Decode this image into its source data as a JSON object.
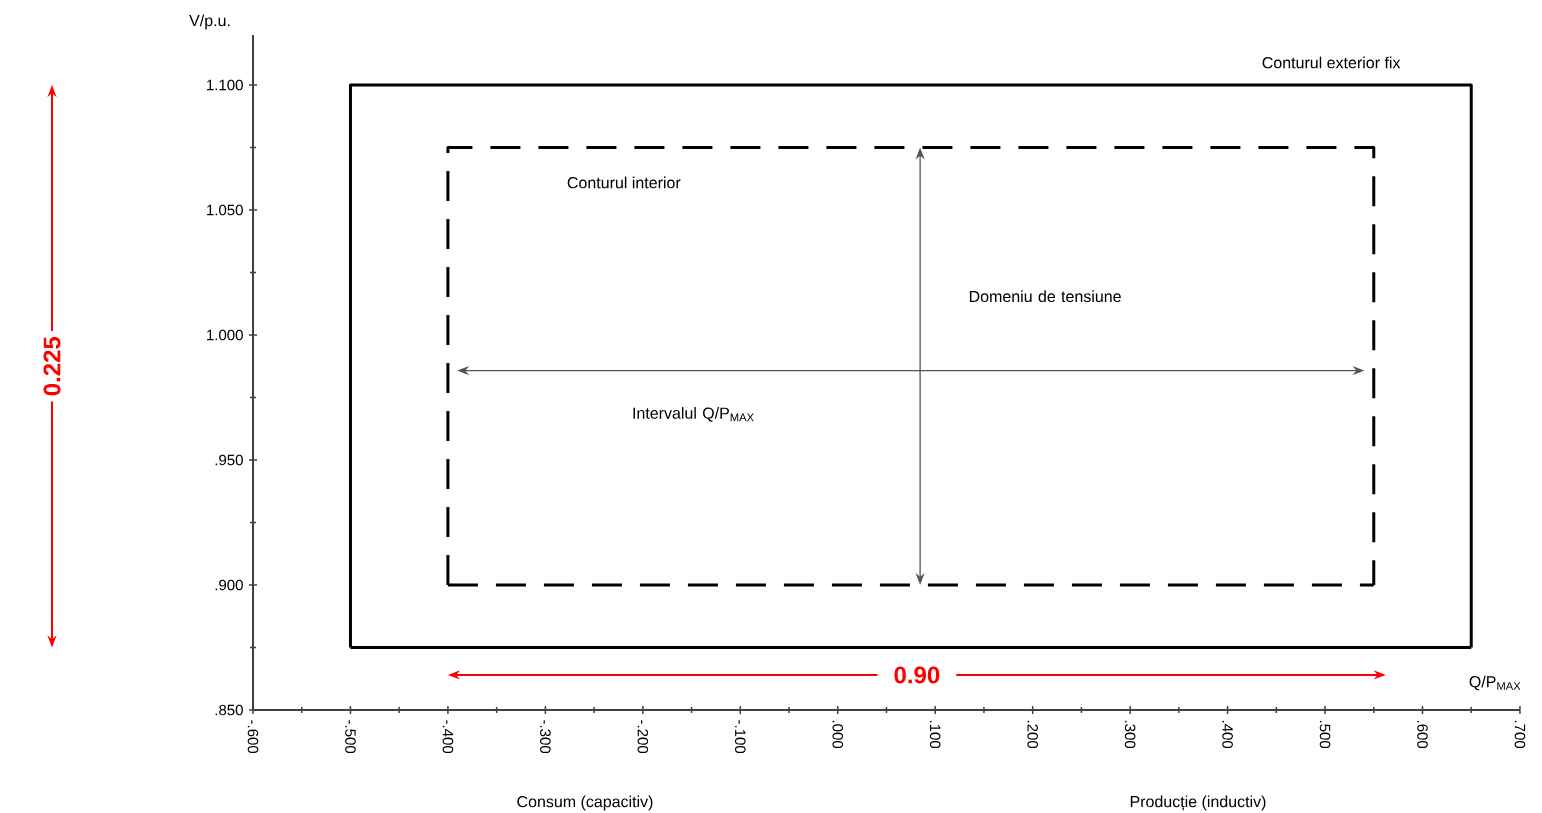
{
  "chart_data": {
    "type": "line",
    "xlabel": "Q/P$_{MAX}$",
    "ylabel": "V/p.u.",
    "xlim": [
      -0.6,
      0.7
    ],
    "ylim": [
      0.85,
      1.12
    ],
    "xticks": [
      {
        "value": -0.6,
        "label": "-.600"
      },
      {
        "value": -0.5,
        "label": "-.500"
      },
      {
        "value": -0.4,
        "label": "-.400"
      },
      {
        "value": -0.3,
        "label": "-.300"
      },
      {
        "value": -0.2,
        "label": "-.200"
      },
      {
        "value": -0.1,
        "label": "-.100"
      },
      {
        "value": 0,
        "label": ".000"
      },
      {
        "value": 0.1,
        "label": ".100"
      },
      {
        "value": 0.2,
        "label": ".200"
      },
      {
        "value": 0.3,
        "label": ".300"
      },
      {
        "value": 0.4,
        "label": ".400"
      },
      {
        "value": 0.5,
        "label": ".500"
      },
      {
        "value": 0.6,
        "label": ".600"
      },
      {
        "value": 0.7,
        "label": ".700"
      }
    ],
    "yticks": [
      {
        "value": 0.85,
        "label": ".850"
      },
      {
        "value": 0.9,
        "label": ".900"
      },
      {
        "value": 0.95,
        "label": ".950"
      },
      {
        "value": 1.0,
        "label": "1.000"
      },
      {
        "value": 1.05,
        "label": "1.050"
      },
      {
        "value": 1.1,
        "label": "1.100"
      }
    ],
    "marker": "none",
    "series": [
      {
        "color": "#000000",
        "line_style": "solid",
        "x": [
          -0.5,
          -0.5,
          0.65,
          0.65
        ],
        "values": [
          0.875,
          1.1,
          1.1,
          0.875
        ]
      },
      {
        "color": "#000000",
        "line_style": "solid",
        "x": [
          -0.5,
          0.65
        ],
        "values": [
          0.875,
          0.875
        ]
      },
      {
        "color": "#000000",
        "line_style": "dashed",
        "x": [
          -0.4,
          -0.4,
          0.55,
          0.55
        ],
        "values": [
          0.9,
          1.075,
          1.075,
          0.9
        ]
      },
      {
        "color": "#000000",
        "line_style": "dashed",
        "x": [
          -0.4,
          0.55
        ],
        "values": [
          0.9,
          0.9
        ]
      }
    ],
    "annotations": [
      "Conturul exterior fix",
      "Conturul interior",
      "Domeniu de tensiune",
      "Intervalul Q/P$_{MAX}$",
      "0.225",
      "0.90",
      "Consum (capacitiv)",
      "Producție (inductiv)"
    ]
  }
}
